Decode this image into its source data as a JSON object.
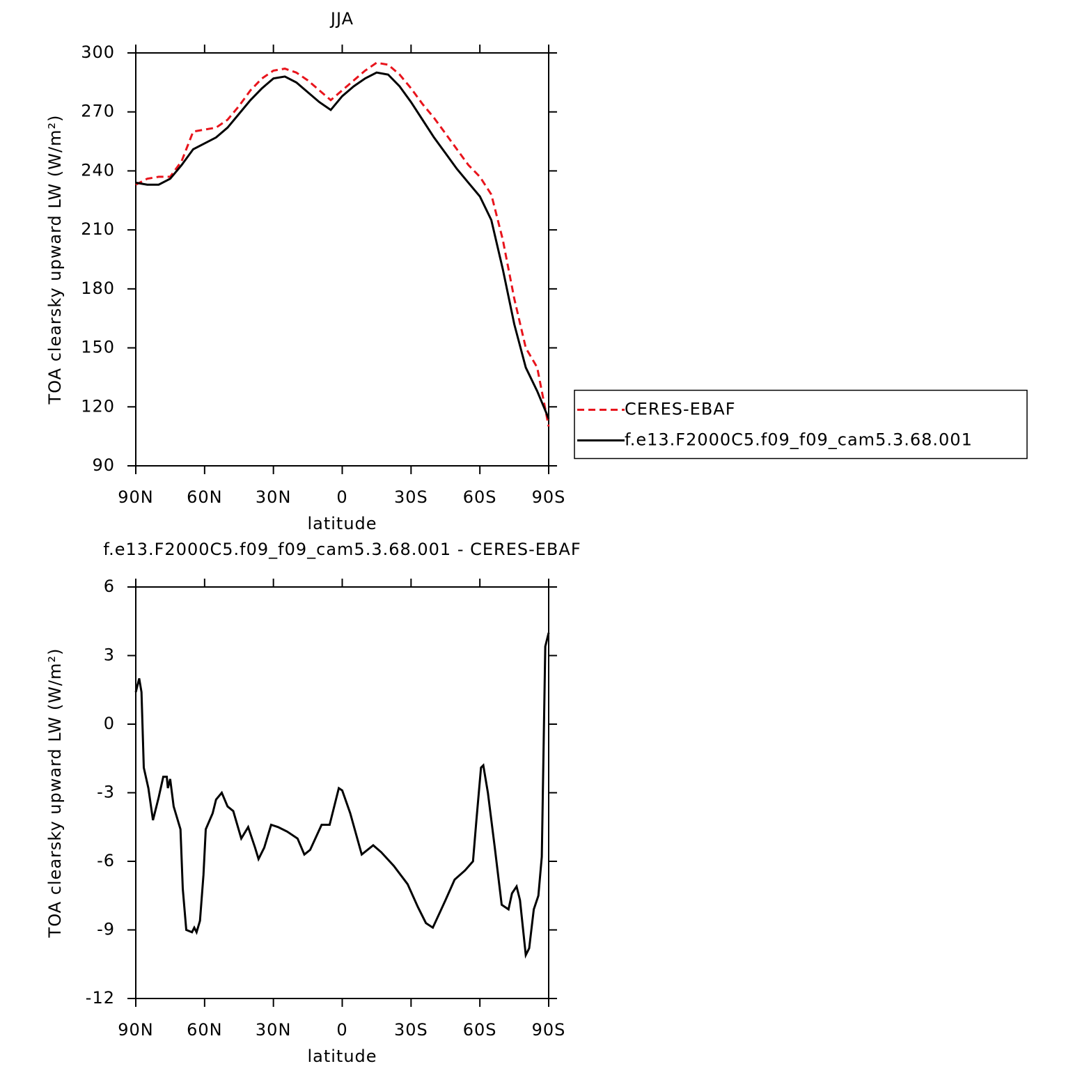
{
  "chart_data": [
    {
      "type": "line",
      "title": "JJA",
      "xlabel": "latitude",
      "ylabel": "TOA clearsky upward LW (W/m²)",
      "x": [
        90,
        85,
        80,
        75,
        70,
        65,
        60,
        55,
        50,
        45,
        40,
        35,
        30,
        25,
        20,
        15,
        10,
        5,
        0,
        -5,
        -10,
        -15,
        -20,
        -25,
        -30,
        -35,
        -40,
        -45,
        -50,
        -55,
        -60,
        -65,
        -70,
        -75,
        -80,
        -85,
        -90
      ],
      "series": [
        {
          "name": "CERES-EBAF",
          "color": "#e8141c",
          "dash": "10,6",
          "values": [
            233,
            236,
            237,
            237,
            245,
            260,
            261,
            262,
            266,
            273,
            281,
            287,
            291,
            292,
            290,
            286,
            281,
            276,
            281,
            286,
            291,
            295,
            294,
            289,
            282,
            274,
            267,
            259,
            251,
            243,
            237,
            228,
            205,
            175,
            150,
            140,
            110
          ]
        },
        {
          "name": "f.e13.F2000C5.f09_f09_cam5.3.68.001",
          "color": "#000000",
          "values": [
            234,
            233,
            233,
            236,
            243,
            251,
            254,
            257,
            262,
            269,
            276,
            282,
            287,
            288,
            285,
            280,
            275,
            271,
            278,
            283,
            287,
            290,
            289,
            283,
            275,
            266,
            257,
            249,
            241,
            234,
            227,
            215,
            190,
            162,
            140,
            128,
            114
          ]
        }
      ],
      "xlim": [
        90,
        -90
      ],
      "xticks": [
        {
          "value": 90,
          "label": "90N"
        },
        {
          "value": 60,
          "label": "60N"
        },
        {
          "value": 30,
          "label": "30N"
        },
        0,
        {
          "value": -30,
          "label": "30S"
        },
        {
          "value": -60,
          "label": "60S"
        },
        {
          "value": -90,
          "label": "90S"
        }
      ],
      "ylim": [
        90,
        300
      ],
      "yticks": [
        90,
        120,
        150,
        180,
        210,
        240,
        270,
        300
      ],
      "legend": "right"
    },
    {
      "type": "line",
      "title": "f.e13.F2000C5.f09_f09_cam5.3.68.001 - CERES-EBAF",
      "xlabel": "latitude",
      "ylabel": "TOA clearsky upward LW (W/m²)",
      "x": [
        90,
        88.5,
        87.5,
        86.5,
        84.5,
        82.5,
        80,
        78,
        76.5,
        76,
        75,
        73.5,
        70.5,
        69.5,
        68,
        65.5,
        64.5,
        63.5,
        62,
        60.5,
        59.5,
        56.5,
        55,
        52.5,
        50,
        47.5,
        44,
        41,
        38,
        36.5,
        34,
        31,
        28,
        24,
        19.5,
        16.5,
        14,
        9,
        5.5,
        1.5,
        0,
        -3.5,
        -8.5,
        -13.5,
        -17,
        -22.5,
        -28.5,
        -33,
        -36.5,
        -39.5,
        -45,
        -49,
        -53.5,
        -57,
        -58.5,
        -60.5,
        -61.5,
        -63.5,
        -66.5,
        -69.5,
        -72.5,
        -74,
        -76,
        -77.5,
        -80,
        -81.5,
        -83.5,
        -85.5,
        -87,
        -88.5,
        -90
      ],
      "series": [
        {
          "name": "f.e13.F2000C5.f09_f09_cam5.3.68.001 - CERES-EBAF",
          "color": "#000000",
          "values": [
            1.4,
            2.0,
            1.4,
            -1.9,
            -2.8,
            -4.2,
            -3.2,
            -2.3,
            -2.3,
            -2.8,
            -2.4,
            -3.6,
            -4.6,
            -7.2,
            -9.0,
            -9.1,
            -8.9,
            -9.1,
            -8.6,
            -6.6,
            -4.6,
            -3.9,
            -3.3,
            -3.0,
            -3.6,
            -3.8,
            -5.0,
            -4.5,
            -5.4,
            -5.9,
            -5.4,
            -4.4,
            -4.5,
            -4.7,
            -5.0,
            -5.7,
            -5.5,
            -4.4,
            -4.4,
            -2.8,
            -2.9,
            -3.9,
            -5.7,
            -5.3,
            -5.6,
            -6.2,
            -7.0,
            -8.0,
            -8.7,
            -8.9,
            -7.7,
            -6.8,
            -6.4,
            -6.0,
            -4.2,
            -1.9,
            -1.8,
            -3.0,
            -5.4,
            -7.9,
            -8.1,
            -7.4,
            -7.1,
            -7.7,
            -10.1,
            -9.8,
            -8.1,
            -7.5,
            -5.8,
            3.4,
            4.0
          ]
        }
      ],
      "xlim": [
        90,
        -90
      ],
      "xticks": [
        {
          "value": 90,
          "label": "90N"
        },
        {
          "value": 60,
          "label": "60N"
        },
        {
          "value": 30,
          "label": "30N"
        },
        0,
        {
          "value": -30,
          "label": "30S"
        },
        {
          "value": -60,
          "label": "60S"
        },
        {
          "value": -90,
          "label": "90S"
        }
      ],
      "ylim": [
        -12,
        6
      ],
      "yticks": [
        -12,
        -9,
        -6,
        -3,
        0,
        3,
        6
      ]
    }
  ]
}
